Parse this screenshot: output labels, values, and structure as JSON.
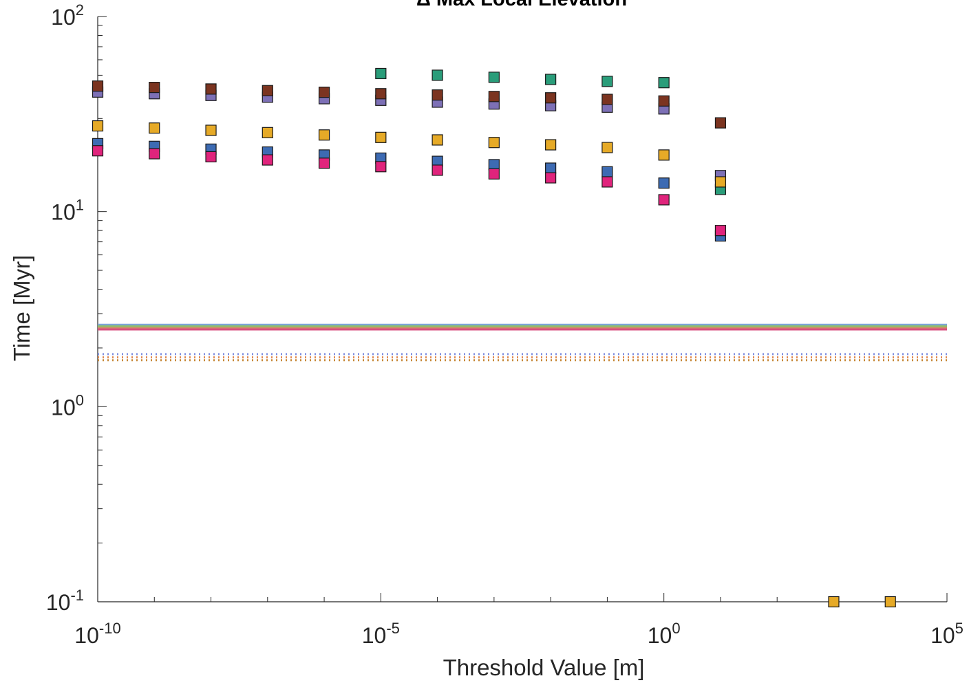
{
  "chart_data": {
    "type": "scatter",
    "title": "Δ Max Local Elevation",
    "xlabel": "Threshold Value [m]",
    "ylabel": "Time [Myr]",
    "xscale": "log",
    "yscale": "log",
    "xlim": [
      1e-10,
      100000
    ],
    "ylim": [
      0.1,
      100
    ],
    "x_ticks": [
      {
        "base": "10",
        "exp": "-10"
      },
      {
        "base": "10",
        "exp": "-5"
      },
      {
        "base": "10",
        "exp": "0"
      },
      {
        "base": "10",
        "exp": "5"
      }
    ],
    "y_ticks": [
      {
        "base": "10",
        "exp": "-1"
      },
      {
        "base": "10",
        "exp": "0"
      },
      {
        "base": "10",
        "exp": "1"
      },
      {
        "base": "10",
        "exp": "2"
      }
    ],
    "grid": false,
    "series": [
      {
        "color": "#2a9d7a",
        "x": [
          1e-05,
          0.0001,
          0.001,
          0.01,
          0.1,
          1,
          10
        ],
        "y": [
          51,
          50,
          48.8,
          47.6,
          46.5,
          45.8,
          13
        ]
      },
      {
        "color": "#7d70b6",
        "x": [
          1e-10,
          1e-09,
          1e-08,
          1e-07,
          1e-06,
          1e-05,
          0.0001,
          0.001,
          0.01,
          0.1,
          1,
          10
        ],
        "y": [
          41,
          40.2,
          39.4,
          38.6,
          37.9,
          37.2,
          36.4,
          35.6,
          34.9,
          34.3,
          33.6,
          15.3
        ]
      },
      {
        "color": "#7b3420",
        "x": [
          1e-10,
          1e-09,
          1e-08,
          1e-07,
          1e-06,
          1e-05,
          0.0001,
          0.001,
          0.01,
          0.1,
          1,
          10
        ],
        "y": [
          44,
          43.3,
          42.5,
          41.7,
          40.9,
          40.2,
          39.6,
          38.9,
          38.3,
          37.6,
          36.9,
          28.5
        ]
      },
      {
        "color": "#e6aa27",
        "x": [
          1e-10,
          1e-09,
          1e-08,
          1e-07,
          1e-06,
          1e-05,
          0.0001,
          0.001,
          0.01,
          0.1,
          1,
          10,
          1000,
          10000
        ],
        "y": [
          27.5,
          26.8,
          26.1,
          25.4,
          24.7,
          24,
          23.3,
          22.6,
          22,
          21.3,
          19.5,
          14.2,
          0.1,
          0.1
        ]
      },
      {
        "color": "#3d6bb3",
        "x": [
          1e-10,
          1e-09,
          1e-08,
          1e-07,
          1e-06,
          1e-05,
          0.0001,
          0.001,
          0.01,
          0.1,
          1,
          10
        ],
        "y": [
          22.3,
          21.6,
          20.9,
          20.2,
          19.5,
          18.8,
          18.1,
          17.4,
          16.7,
          16,
          14,
          7.5
        ]
      },
      {
        "color": "#e0247c",
        "x": [
          1e-10,
          1e-09,
          1e-08,
          1e-07,
          1e-06,
          1e-05,
          0.0001,
          0.001,
          0.01,
          0.1,
          1,
          10
        ],
        "y": [
          20.5,
          19.8,
          19.1,
          18.4,
          17.7,
          17,
          16.3,
          15.6,
          14.9,
          14.2,
          11.5,
          8
        ]
      }
    ],
    "reference_lines": [
      {
        "style": "solid",
        "color": "#7ea7d8",
        "y": 2.63
      },
      {
        "style": "solid",
        "color": "#8fbf6a",
        "y": 2.58
      },
      {
        "style": "solid",
        "color": "#d08a6a",
        "y": 2.53
      },
      {
        "style": "solid",
        "color": "#d85080",
        "y": 2.49
      },
      {
        "style": "dotted",
        "color": "#7f8fe0",
        "y": 1.86
      },
      {
        "style": "dotted",
        "color": "#e08a50",
        "y": 1.79
      },
      {
        "style": "dotted",
        "color": "#c88a3a",
        "y": 1.73
      }
    ]
  }
}
